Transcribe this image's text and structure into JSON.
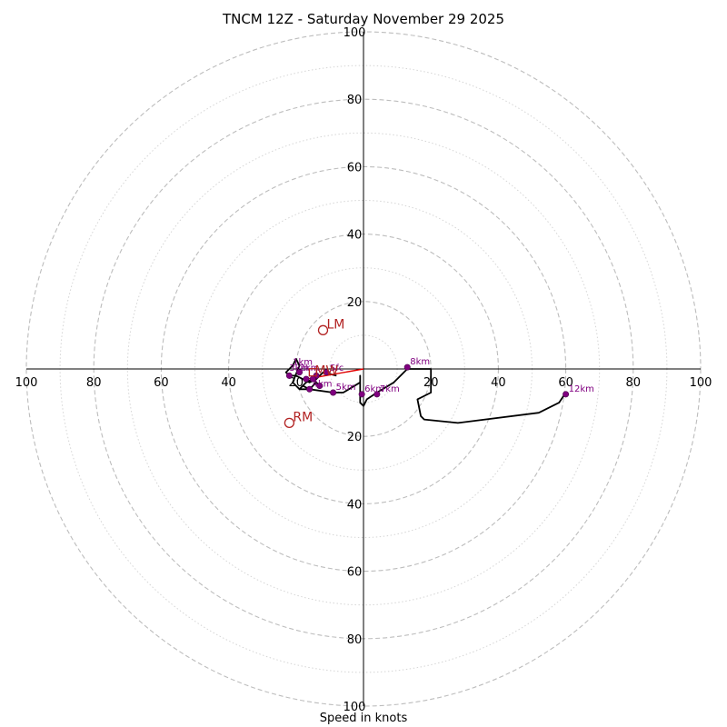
{
  "chart_data": {
    "type": "line",
    "title": "TNCM 12Z - Saturday November 29 2025",
    "xlabel": "Speed in knots",
    "ylabel": "",
    "xlim": [
      -100,
      100
    ],
    "ylim": [
      -100,
      100
    ],
    "units": "knots",
    "rings": {
      "major": [
        20,
        40,
        60,
        80,
        100
      ],
      "minor": [
        10,
        30,
        50,
        70,
        90
      ]
    },
    "x_tick_labels": [
      "100",
      "80",
      "60",
      "40",
      "20",
      "20",
      "40",
      "60",
      "80",
      "100"
    ],
    "y_tick_labels": [
      "100",
      "80",
      "60",
      "40",
      "20",
      "20",
      "40",
      "60",
      "80",
      "100"
    ],
    "colors": {
      "hodograph": "#000000",
      "height_points": "#800080",
      "shear_vector": "#e00000",
      "storm_motion": "#b22222",
      "rings": "#bdbdbd"
    },
    "hodograph": {
      "u": [
        -8,
        -12,
        -14,
        -16,
        -20,
        -22,
        -23,
        -21,
        -20,
        -19,
        -21,
        -19,
        -17,
        -15,
        -13,
        -14,
        -16,
        -17,
        -19,
        -18,
        -16,
        -9,
        -6,
        -1,
        -1,
        -1,
        0,
        1,
        4,
        9,
        13,
        15,
        20,
        20,
        16,
        17,
        18,
        28,
        52,
        58,
        60
      ],
      "v": [
        -2,
        -1,
        -3,
        -4,
        -2,
        -2,
        -1,
        1,
        3,
        1,
        -4,
        -6,
        -4,
        -3,
        -5,
        -4,
        -6,
        -6,
        -6,
        -5,
        -6,
        -7,
        -7,
        -4,
        -2,
        -10,
        -11,
        -9,
        -7,
        -4,
        0,
        0,
        0,
        -7,
        -9,
        -14,
        -15,
        -16,
        -13,
        -10,
        -7
      ],
      "height_points": [
        {
          "label": "",
          "u": -11,
          "v": -1
        },
        {
          "label": "",
          "u": -14,
          "v": -2
        },
        {
          "label": "",
          "u": -17,
          "v": -3
        },
        {
          "label": "",
          "u": -22,
          "v": -2
        },
        {
          "label": "",
          "u": -19,
          "v": -1
        },
        {
          "label": "",
          "u": -15,
          "v": -3
        },
        {
          "label": "",
          "u": -13,
          "v": -5
        },
        {
          "label": "4km",
          "u": -16,
          "v": -6
        },
        {
          "label": "5km",
          "u": -9,
          "v": -7
        },
        {
          "label": "6km",
          "u": -0.5,
          "v": -7.5
        },
        {
          "label": "7km",
          "u": 4,
          "v": -7.5
        },
        {
          "label": "8km",
          "u": 13,
          "v": 0.5
        },
        {
          "label": "12km",
          "u": 60,
          "v": -7.5
        }
      ],
      "annotations": [
        {
          "text": "1km",
          "u": -21,
          "v": 1.2
        },
        {
          "text": "3km",
          "u": -22,
          "v": -0.5
        },
        {
          "text": "2km",
          "u": -19,
          "v": -0.5
        },
        {
          "text": "Sfc",
          "u": -10,
          "v": -0.5
        }
      ]
    },
    "shear_vector": {
      "from": [
        -17,
        -3
      ],
      "to": [
        0,
        0
      ]
    },
    "storm_motion": [
      {
        "label": "LM",
        "u": -12,
        "v": 11.5
      },
      {
        "label": "RM",
        "u": -22,
        "v": -16
      },
      {
        "label": "MW",
        "u": -15,
        "v": -1
      }
    ]
  }
}
